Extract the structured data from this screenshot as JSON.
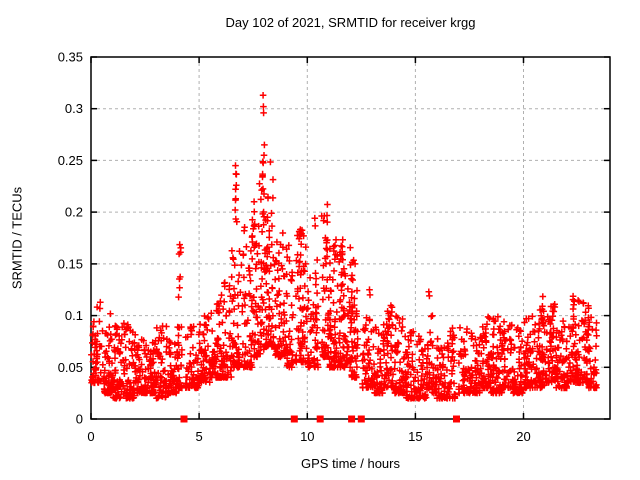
{
  "chart_data": {
    "type": "scatter",
    "title": "Day 102 of 2021, SRMTID for receiver krgg",
    "xlabel": "GPS time / hours",
    "ylabel": "SRMTID / TECUs",
    "xlim": [
      0,
      24
    ],
    "ylim": [
      0,
      0.35
    ],
    "xticks": [
      0,
      5,
      10,
      15,
      20
    ],
    "xtick_labels": [
      "0",
      "5",
      "10",
      "15",
      "20"
    ],
    "yticks": [
      0,
      0.05,
      0.1,
      0.15,
      0.2,
      0.25,
      0.3,
      0.35
    ],
    "ytick_labels": [
      "0",
      "0.05",
      "0.1",
      "0.15",
      "0.2",
      "0.25",
      "0.3",
      "0.35"
    ],
    "grid": {
      "show": true,
      "style": "dashed",
      "color": "#b0b0b0"
    },
    "legend": "none",
    "border_color": "#000000",
    "peak": {
      "hour": 7.96,
      "value": 0.313
    },
    "series": [
      {
        "name": "SRMTID",
        "marker": "plus",
        "marker_size": 7,
        "color": "#ff0000",
        "seed": 1337,
        "density_bias": 2.0,
        "envelope_bins": [
          [
            0.0,
            0.5,
            0.035,
            0.12,
            55
          ],
          [
            0.5,
            1.0,
            0.025,
            0.105,
            60
          ],
          [
            1.0,
            1.5,
            0.02,
            0.09,
            60
          ],
          [
            1.5,
            2.0,
            0.02,
            0.095,
            60
          ],
          [
            2.0,
            2.5,
            0.025,
            0.085,
            60
          ],
          [
            2.5,
            3.0,
            0.025,
            0.08,
            60
          ],
          [
            3.0,
            3.5,
            0.02,
            0.09,
            55
          ],
          [
            3.5,
            4.0,
            0.025,
            0.08,
            50
          ],
          [
            4.0,
            4.22,
            0.03,
            0.095,
            25
          ],
          [
            4.38,
            4.5,
            0.03,
            0.08,
            12
          ],
          [
            4.5,
            5.0,
            0.03,
            0.09,
            50
          ],
          [
            5.0,
            5.5,
            0.035,
            0.1,
            50
          ],
          [
            5.5,
            6.0,
            0.04,
            0.115,
            55
          ],
          [
            6.0,
            6.5,
            0.04,
            0.135,
            55
          ],
          [
            6.5,
            7.0,
            0.05,
            0.17,
            55
          ],
          [
            7.0,
            7.5,
            0.05,
            0.19,
            60
          ],
          [
            7.5,
            8.0,
            0.06,
            0.23,
            65
          ],
          [
            8.0,
            8.5,
            0.07,
            0.25,
            65
          ],
          [
            8.5,
            9.0,
            0.06,
            0.19,
            60
          ],
          [
            9.0,
            9.35,
            0.05,
            0.17,
            40
          ],
          [
            9.45,
            10.0,
            0.055,
            0.185,
            60
          ],
          [
            10.0,
            10.5,
            0.05,
            0.16,
            55
          ],
          [
            10.65,
            11.0,
            0.06,
            0.2,
            45
          ],
          [
            11.0,
            11.5,
            0.05,
            0.195,
            65
          ],
          [
            11.5,
            12.0,
            0.05,
            0.175,
            65
          ],
          [
            12.0,
            12.35,
            0.04,
            0.15,
            45
          ],
          [
            12.55,
            13.0,
            0.03,
            0.1,
            45
          ],
          [
            13.0,
            13.5,
            0.025,
            0.09,
            50
          ],
          [
            13.5,
            14.0,
            0.03,
            0.11,
            55
          ],
          [
            14.0,
            14.5,
            0.025,
            0.1,
            55
          ],
          [
            14.5,
            15.0,
            0.02,
            0.085,
            55
          ],
          [
            15.0,
            15.5,
            0.02,
            0.08,
            50
          ],
          [
            15.5,
            16.0,
            0.025,
            0.1,
            50
          ],
          [
            16.0,
            16.5,
            0.02,
            0.08,
            50
          ],
          [
            16.5,
            16.85,
            0.02,
            0.09,
            35
          ],
          [
            17.0,
            17.5,
            0.025,
            0.09,
            45
          ],
          [
            17.5,
            18.0,
            0.025,
            0.095,
            55
          ],
          [
            18.0,
            18.5,
            0.03,
            0.1,
            55
          ],
          [
            18.5,
            19.0,
            0.025,
            0.1,
            55
          ],
          [
            19.0,
            19.5,
            0.03,
            0.095,
            55
          ],
          [
            19.5,
            20.0,
            0.025,
            0.09,
            55
          ],
          [
            20.0,
            20.5,
            0.03,
            0.1,
            55
          ],
          [
            20.5,
            21.0,
            0.03,
            0.125,
            60
          ],
          [
            21.0,
            21.5,
            0.035,
            0.115,
            60
          ],
          [
            21.5,
            22.0,
            0.03,
            0.1,
            55
          ],
          [
            22.0,
            22.5,
            0.035,
            0.115,
            60
          ],
          [
            22.5,
            23.0,
            0.035,
            0.12,
            55
          ],
          [
            23.0,
            23.4,
            0.03,
            0.1,
            40
          ]
        ],
        "spike_streaks": [
          [
            4.1,
            0.06,
            0.11,
            0.17,
            8
          ],
          [
            6.7,
            0.05,
            0.19,
            0.246,
            6
          ],
          [
            7.5,
            0.05,
            0.15,
            0.23,
            8
          ],
          [
            7.97,
            0.04,
            0.185,
            0.262,
            10
          ],
          [
            8.2,
            0.05,
            0.15,
            0.22,
            7
          ],
          [
            9.7,
            0.08,
            0.13,
            0.185,
            8
          ],
          [
            10.35,
            0.03,
            0.183,
            0.196,
            2
          ],
          [
            10.9,
            0.07,
            0.13,
            0.208,
            9
          ],
          [
            11.6,
            0.06,
            0.12,
            0.175,
            7
          ],
          [
            12.1,
            0.05,
            0.1,
            0.155,
            6
          ],
          [
            13.9,
            0.05,
            0.09,
            0.115,
            4
          ],
          [
            18.6,
            0.06,
            0.085,
            0.1,
            3
          ],
          [
            20.9,
            0.07,
            0.09,
            0.13,
            7
          ],
          [
            22.3,
            0.06,
            0.085,
            0.12,
            6
          ],
          [
            23.0,
            0.05,
            0.08,
            0.115,
            4
          ]
        ],
        "outlier_points": [
          [
            7.96,
            0.313
          ],
          [
            7.97,
            0.302
          ],
          [
            7.98,
            0.296
          ],
          [
            8.02,
            0.265
          ],
          [
            8.0,
            0.255
          ],
          [
            6.68,
            0.245
          ],
          [
            6.7,
            0.237
          ],
          [
            6.72,
            0.226
          ],
          [
            6.69,
            0.213
          ],
          [
            12.88,
            0.125
          ],
          [
            12.9,
            0.12
          ],
          [
            15.62,
            0.123
          ],
          [
            15.65,
            0.119
          ]
        ]
      }
    ],
    "baseline_markers": {
      "marker": "filled-square",
      "color": "#ff0000",
      "value": 0,
      "hours": [
        4.3,
        9.4,
        10.6,
        12.05,
        12.5,
        16.9
      ]
    }
  }
}
